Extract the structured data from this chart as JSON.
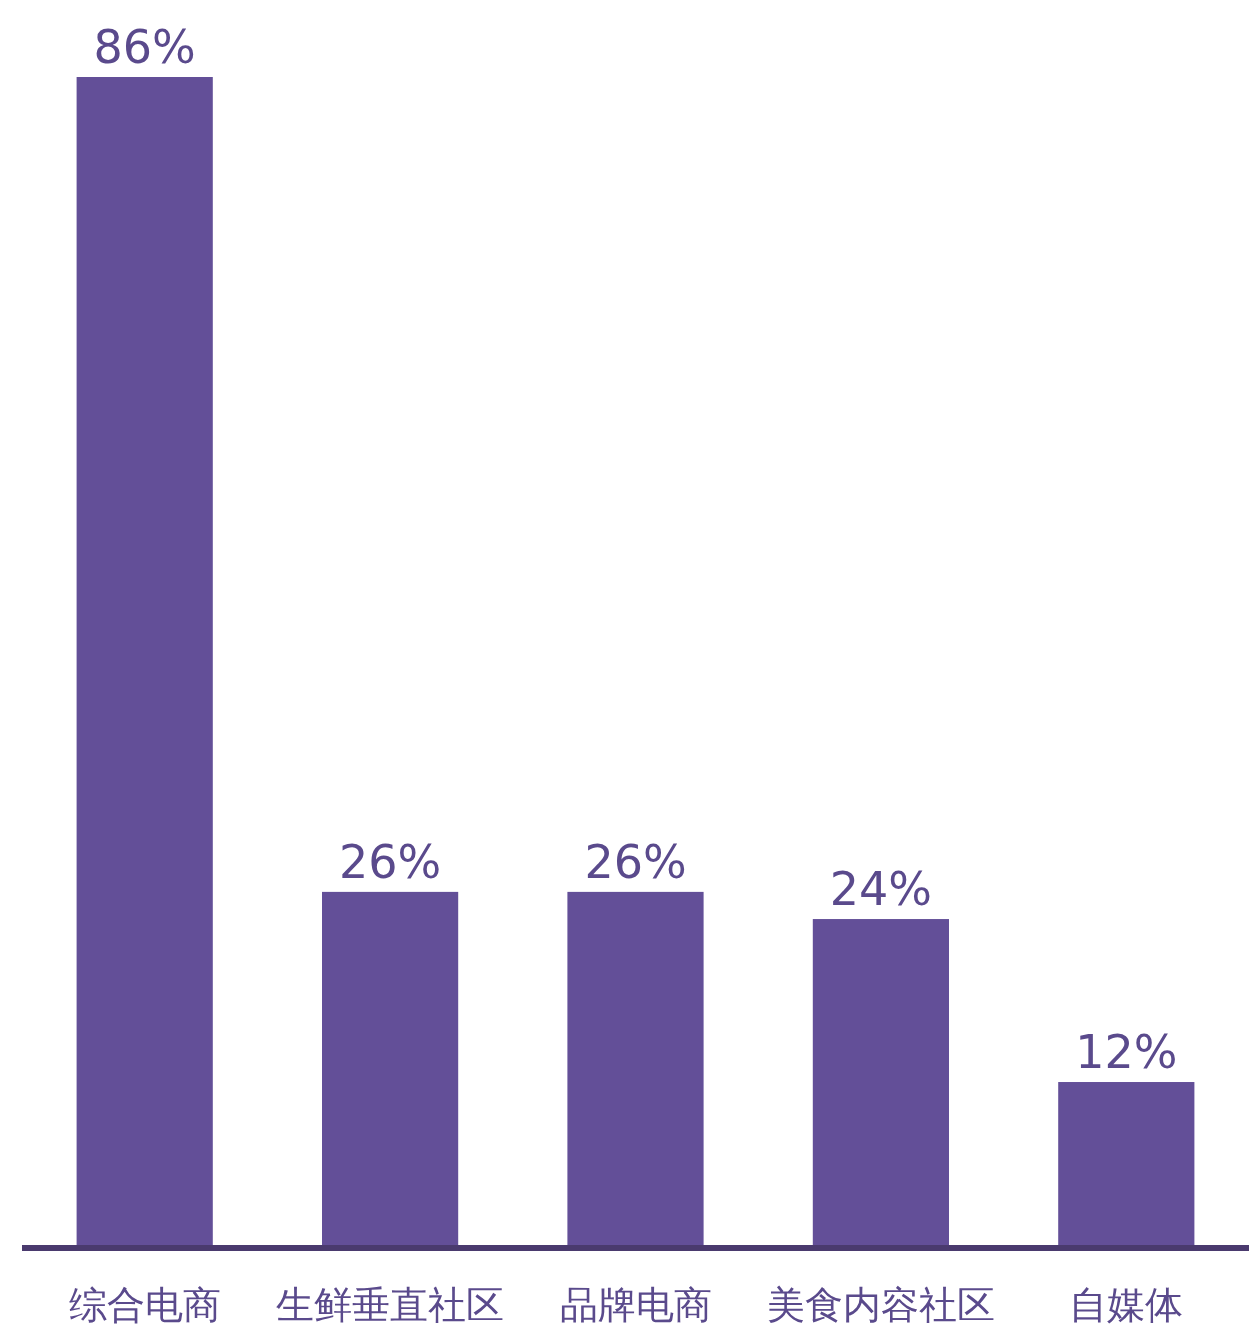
{
  "chart_data": {
    "type": "bar",
    "categories": [
      "综合电商",
      "生鲜垂直社区",
      "品牌电商",
      "美食内容社区",
      "自媒体"
    ],
    "values": [
      86,
      26,
      26,
      24,
      12
    ],
    "value_labels": [
      "86%",
      "26%",
      "26%",
      "24%",
      "12%"
    ],
    "color": "#634f98"
  }
}
